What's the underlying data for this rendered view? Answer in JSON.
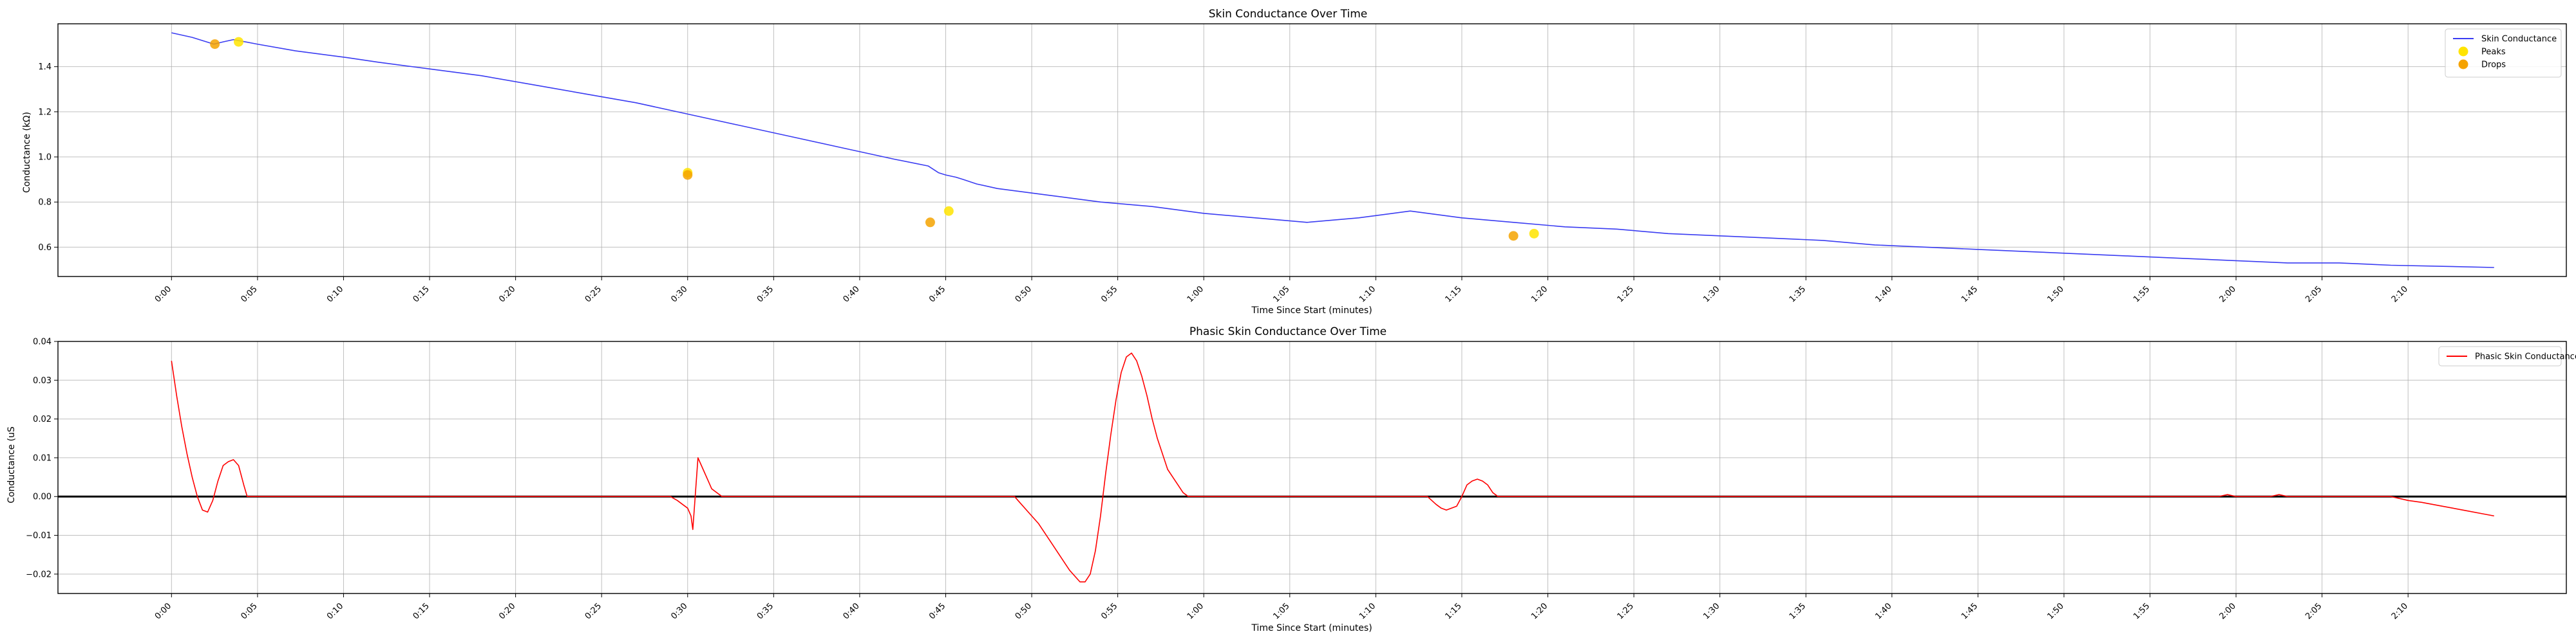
{
  "chart_data": [
    {
      "type": "line",
      "title": "Skin Conductance Over Time",
      "xlabel": "Time Since Start (minutes)",
      "ylabel": "Conductance (kΩ)",
      "xlim": [
        -0.11,
        2.32
      ],
      "ylim": [
        0.47,
        1.59
      ],
      "xticks": [
        "0:00",
        "0:05",
        "0:10",
        "0:15",
        "0:20",
        "0:25",
        "0:30",
        "0:35",
        "0:40",
        "0:45",
        "0:50",
        "0:55",
        "1:00",
        "1:05",
        "1:10",
        "1:15",
        "1:20",
        "1:25",
        "1:30",
        "1:35",
        "1:40",
        "1:45",
        "1:50",
        "1:55",
        "2:00",
        "2:05",
        "2:10"
      ],
      "yticks": [
        "0.6",
        "0.8",
        "1.0",
        "1.2",
        "1.4"
      ],
      "grid": true,
      "legend_position": "top-right",
      "series": [
        {
          "name": "Skin Conductance",
          "color": "#3a3cf2",
          "x": [
            0.0,
            0.02,
            0.041,
            0.05,
            0.06,
            0.083,
            0.12,
            0.17,
            0.2,
            0.25,
            0.3,
            0.35,
            0.4,
            0.45,
            0.5,
            0.55,
            0.6,
            0.65,
            0.7,
            0.733,
            0.743,
            0.75,
            0.76,
            0.767,
            0.78,
            0.8,
            0.85,
            0.9,
            0.95,
            1.0,
            1.05,
            1.1,
            1.15,
            1.2,
            1.25,
            1.3,
            1.35,
            1.4,
            1.45,
            1.5,
            1.55,
            1.6,
            1.65,
            1.7,
            1.75,
            1.8,
            1.85,
            1.9,
            1.95,
            2.0,
            2.05,
            2.1,
            2.15,
            2.2,
            2.25
          ],
          "y": [
            1.55,
            1.53,
            1.5,
            1.51,
            1.52,
            1.5,
            1.47,
            1.44,
            1.42,
            1.39,
            1.36,
            1.32,
            1.28,
            1.24,
            1.19,
            1.14,
            1.09,
            1.04,
            0.99,
            0.96,
            0.93,
            0.92,
            0.91,
            0.9,
            0.88,
            0.86,
            0.83,
            0.8,
            0.78,
            0.75,
            0.73,
            0.71,
            0.73,
            0.76,
            0.73,
            0.71,
            0.69,
            0.68,
            0.66,
            0.65,
            0.64,
            0.63,
            0.61,
            0.6,
            0.59,
            0.58,
            0.57,
            0.56,
            0.55,
            0.54,
            0.53,
            0.53,
            0.52,
            0.515,
            0.51
          ]
        }
      ],
      "markers": [
        {
          "name": "Peaks",
          "color": "#ffe400",
          "points": [
            [
              0.065,
              1.51
            ],
            [
              0.5,
              0.93
            ],
            [
              0.753,
              0.76
            ],
            [
              1.32,
              0.66
            ]
          ]
        },
        {
          "name": "Drops",
          "color": "#f5a300",
          "points": [
            [
              0.042,
              1.5
            ],
            [
              0.5,
              0.92
            ],
            [
              0.735,
              0.71
            ],
            [
              1.3,
              0.65
            ]
          ]
        }
      ]
    },
    {
      "type": "line",
      "title": "Phasic Skin Conductance Over Time",
      "xlabel": "Time Since Start (minutes)",
      "ylabel": "Conductance (uS",
      "xlim": [
        -0.11,
        2.32
      ],
      "ylim": [
        -0.025,
        0.04
      ],
      "xticks": [
        "0:00",
        "0:05",
        "0:10",
        "0:15",
        "0:20",
        "0:25",
        "0:30",
        "0:35",
        "0:40",
        "0:45",
        "0:50",
        "0:55",
        "1:00",
        "1:05",
        "1:10",
        "1:15",
        "1:20",
        "1:25",
        "1:30",
        "1:35",
        "1:40",
        "1:45",
        "1:50",
        "1:55",
        "2:00",
        "2:05",
        "2:10"
      ],
      "yticks": [
        "−0.02",
        "−0.01",
        "0.00",
        "0.01",
        "0.02",
        "0.03",
        "0.04"
      ],
      "grid": true,
      "legend_position": "top-right",
      "zero_line": true,
      "series": [
        {
          "name": "Phasic Skin Conductance",
          "color": "#ff0000",
          "x": [
            0.0,
            0.005,
            0.01,
            0.015,
            0.02,
            0.025,
            0.03,
            0.035,
            0.04,
            0.045,
            0.05,
            0.055,
            0.06,
            0.065,
            0.07,
            0.0733,
            0.4833,
            0.49,
            0.495,
            0.5,
            0.5033,
            0.505,
            0.51,
            0.515,
            0.52,
            0.5233,
            0.5333,
            0.8167,
            0.82,
            0.83,
            0.84,
            0.85,
            0.86,
            0.87,
            0.88,
            0.885,
            0.89,
            0.895,
            0.9,
            0.905,
            0.91,
            0.915,
            0.92,
            0.925,
            0.93,
            0.935,
            0.94,
            0.945,
            0.95,
            0.955,
            0.96,
            0.965,
            0.97,
            0.975,
            0.98,
            0.985,
            0.99,
            0.995,
            1.0,
            1.005,
            1.01,
            1.0167,
            1.2167,
            1.225,
            1.23,
            1.235,
            1.24,
            1.245,
            1.25,
            1.255,
            1.26,
            1.265,
            1.27,
            1.275,
            1.28,
            1.285,
            1.29,
            1.3,
            1.32,
            1.35,
            1.4,
            1.5,
            1.6,
            1.7,
            1.8,
            1.9,
            1.9833,
            1.9917,
            2.0,
            2.0333,
            2.0417,
            2.05,
            2.1,
            2.15,
            2.1667,
            2.18,
            2.2,
            2.22,
            2.24,
            2.25
          ],
          "y": [
            0.035,
            0.026,
            0.018,
            0.011,
            0.005,
            0.0,
            -0.0035,
            -0.004,
            -0.001,
            0.004,
            0.008,
            0.009,
            0.0095,
            0.008,
            0.003,
            0.0,
            0.0,
            -0.001,
            -0.002,
            -0.003,
            -0.005,
            -0.0085,
            0.01,
            0.007,
            0.004,
            0.002,
            0.0,
            0.0,
            -0.001,
            -0.004,
            -0.007,
            -0.011,
            -0.015,
            -0.019,
            -0.022,
            -0.022,
            -0.02,
            -0.014,
            -0.005,
            0.006,
            0.016,
            0.025,
            0.032,
            0.036,
            0.037,
            0.035,
            0.031,
            0.026,
            0.02,
            0.015,
            0.011,
            0.007,
            0.005,
            0.003,
            0.001,
            0.0,
            0.0,
            0.0,
            0.0,
            0.0,
            0.0,
            0.0,
            0.0,
            -0.002,
            -0.003,
            -0.0035,
            -0.003,
            -0.0025,
            0.0,
            0.003,
            0.004,
            0.0045,
            0.004,
            0.003,
            0.001,
            0.0,
            0.0,
            0.0,
            0.0,
            0.0,
            0.0,
            0.0,
            0.0,
            0.0,
            0.0,
            0.0,
            0.0,
            0.0005,
            0.0,
            0.0,
            0.0005,
            0.0,
            0.0,
            0.0,
            -0.001,
            -0.0015,
            -0.0025,
            -0.0035,
            -0.0045,
            -0.005
          ]
        }
      ]
    }
  ]
}
